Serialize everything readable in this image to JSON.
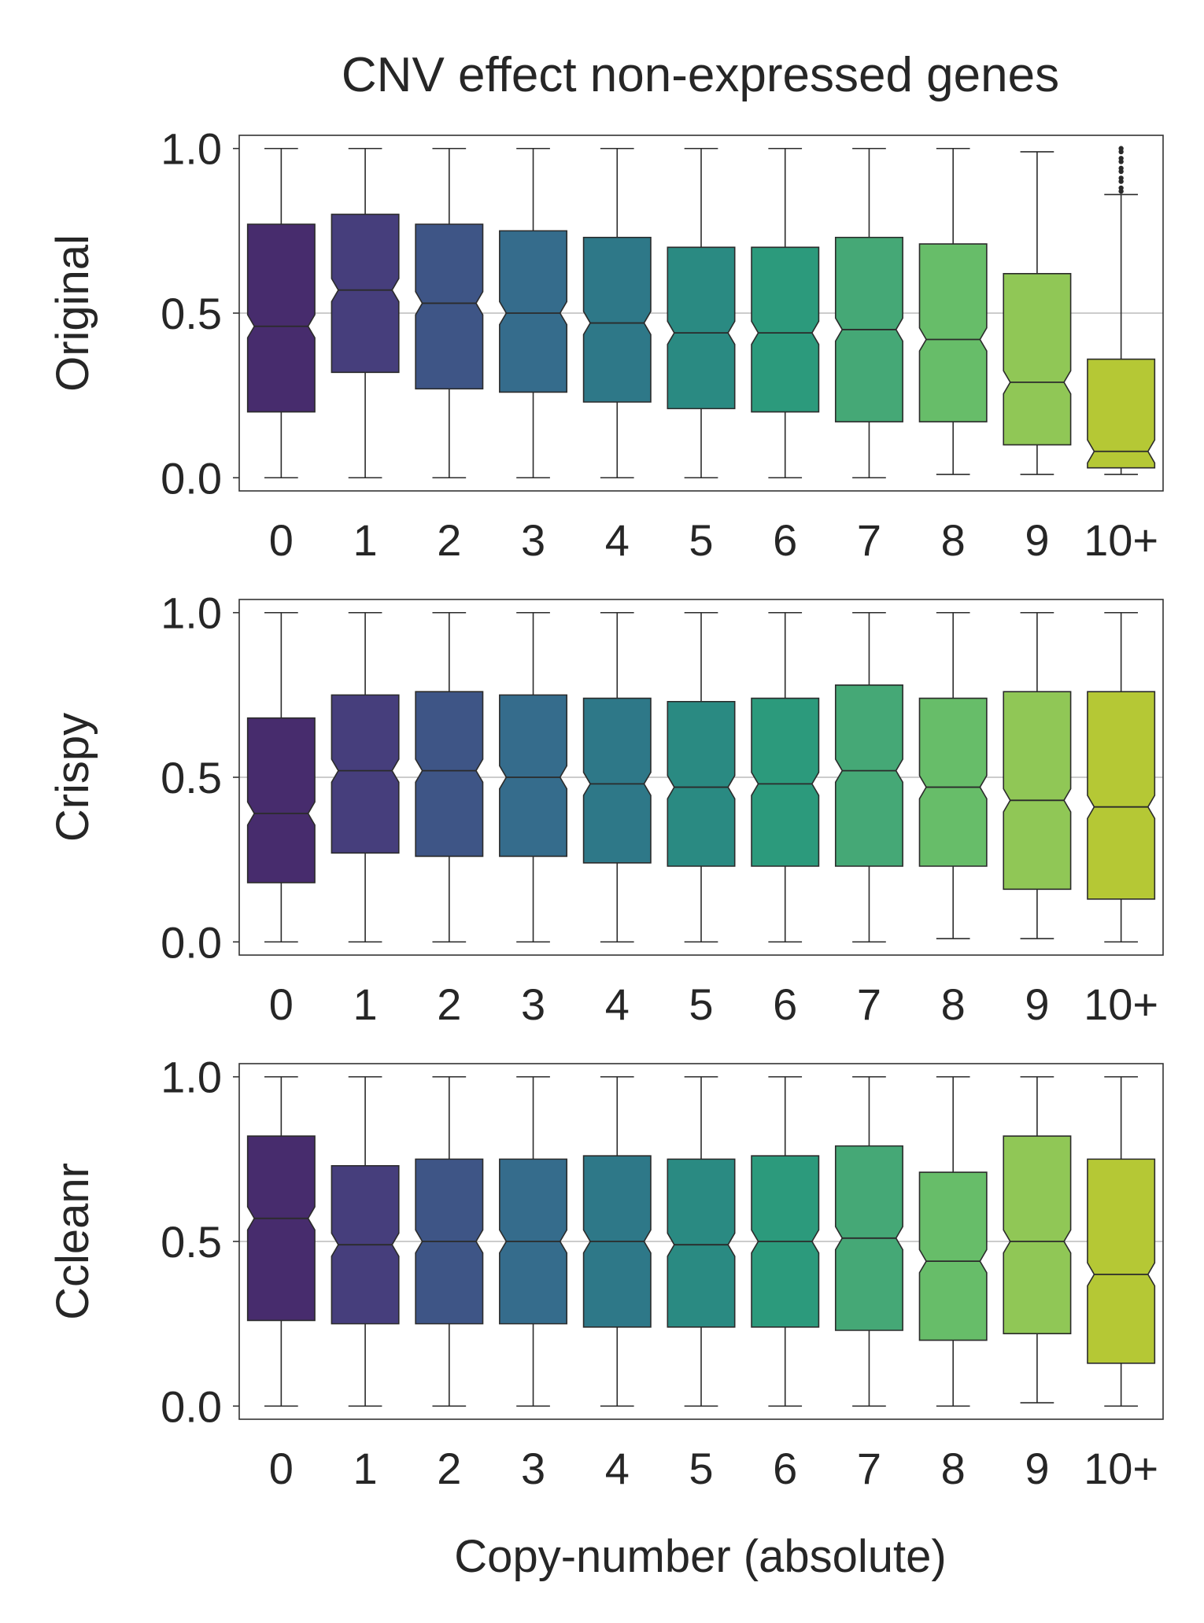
{
  "title": "CNV effect non-expressed genes",
  "xlabel": "Copy-number (absolute)",
  "chart_data": [
    {
      "type": "boxplot",
      "ylabel": "Original",
      "categories": [
        "0",
        "1",
        "2",
        "3",
        "4",
        "5",
        "6",
        "7",
        "8",
        "9",
        "10+"
      ],
      "yticks": [
        "0.0",
        "0.5",
        "1.0"
      ],
      "ylim": [
        -0.04,
        1.04
      ],
      "notched": true,
      "colors": [
        "#472c6d",
        "#463e7c",
        "#3e5586",
        "#356c8c",
        "#2e7888",
        "#2a8a82",
        "#2c9a7c",
        "#45a876",
        "#67bd69",
        "#90c756",
        "#b5c835"
      ],
      "boxes": [
        {
          "whisker_low": 0.0,
          "q1": 0.2,
          "median": 0.46,
          "q3": 0.77,
          "whisker_high": 1.0
        },
        {
          "whisker_low": 0.0,
          "q1": 0.32,
          "median": 0.57,
          "q3": 0.8,
          "whisker_high": 1.0
        },
        {
          "whisker_low": 0.0,
          "q1": 0.27,
          "median": 0.53,
          "q3": 0.77,
          "whisker_high": 1.0
        },
        {
          "whisker_low": 0.0,
          "q1": 0.26,
          "median": 0.5,
          "q3": 0.75,
          "whisker_high": 1.0
        },
        {
          "whisker_low": 0.0,
          "q1": 0.23,
          "median": 0.47,
          "q3": 0.73,
          "whisker_high": 1.0
        },
        {
          "whisker_low": 0.0,
          "q1": 0.21,
          "median": 0.44,
          "q3": 0.7,
          "whisker_high": 1.0
        },
        {
          "whisker_low": 0.0,
          "q1": 0.2,
          "median": 0.44,
          "q3": 0.7,
          "whisker_high": 1.0
        },
        {
          "whisker_low": 0.0,
          "q1": 0.17,
          "median": 0.45,
          "q3": 0.73,
          "whisker_high": 1.0
        },
        {
          "whisker_low": 0.01,
          "q1": 0.17,
          "median": 0.42,
          "q3": 0.71,
          "whisker_high": 1.0
        },
        {
          "whisker_low": 0.01,
          "q1": 0.1,
          "median": 0.29,
          "q3": 0.62,
          "whisker_high": 0.99
        },
        {
          "whisker_low": 0.01,
          "q1": 0.03,
          "median": 0.08,
          "q3": 0.36,
          "whisker_high": 0.86,
          "outliers": [
            0.87,
            0.88,
            0.9,
            0.91,
            0.93,
            0.94,
            0.96,
            0.97,
            0.99,
            1.0
          ]
        }
      ]
    },
    {
      "type": "boxplot",
      "ylabel": "Crispy",
      "categories": [
        "0",
        "1",
        "2",
        "3",
        "4",
        "5",
        "6",
        "7",
        "8",
        "9",
        "10+"
      ],
      "yticks": [
        "0.0",
        "0.5",
        "1.0"
      ],
      "ylim": [
        -0.04,
        1.04
      ],
      "notched": true,
      "colors": [
        "#472c6d",
        "#463e7c",
        "#3e5586",
        "#356c8c",
        "#2e7888",
        "#2a8a82",
        "#2c9a7c",
        "#45a876",
        "#67bd69",
        "#90c756",
        "#b5c835"
      ],
      "boxes": [
        {
          "whisker_low": 0.0,
          "q1": 0.18,
          "median": 0.39,
          "q3": 0.68,
          "whisker_high": 1.0
        },
        {
          "whisker_low": 0.0,
          "q1": 0.27,
          "median": 0.52,
          "q3": 0.75,
          "whisker_high": 1.0
        },
        {
          "whisker_low": 0.0,
          "q1": 0.26,
          "median": 0.52,
          "q3": 0.76,
          "whisker_high": 1.0
        },
        {
          "whisker_low": 0.0,
          "q1": 0.26,
          "median": 0.5,
          "q3": 0.75,
          "whisker_high": 1.0
        },
        {
          "whisker_low": 0.0,
          "q1": 0.24,
          "median": 0.48,
          "q3": 0.74,
          "whisker_high": 1.0
        },
        {
          "whisker_low": 0.0,
          "q1": 0.23,
          "median": 0.47,
          "q3": 0.73,
          "whisker_high": 1.0
        },
        {
          "whisker_low": 0.0,
          "q1": 0.23,
          "median": 0.48,
          "q3": 0.74,
          "whisker_high": 1.0
        },
        {
          "whisker_low": 0.0,
          "q1": 0.23,
          "median": 0.52,
          "q3": 0.78,
          "whisker_high": 1.0
        },
        {
          "whisker_low": 0.01,
          "q1": 0.23,
          "median": 0.47,
          "q3": 0.74,
          "whisker_high": 1.0
        },
        {
          "whisker_low": 0.01,
          "q1": 0.16,
          "median": 0.43,
          "q3": 0.76,
          "whisker_high": 1.0
        },
        {
          "whisker_low": 0.0,
          "q1": 0.13,
          "median": 0.41,
          "q3": 0.76,
          "whisker_high": 1.0
        }
      ]
    },
    {
      "type": "boxplot",
      "ylabel": "Ccleanr",
      "categories": [
        "0",
        "1",
        "2",
        "3",
        "4",
        "5",
        "6",
        "7",
        "8",
        "9",
        "10+"
      ],
      "yticks": [
        "0.0",
        "0.5",
        "1.0"
      ],
      "ylim": [
        -0.04,
        1.04
      ],
      "notched": true,
      "colors": [
        "#472c6d",
        "#463e7c",
        "#3e5586",
        "#356c8c",
        "#2e7888",
        "#2a8a82",
        "#2c9a7c",
        "#45a876",
        "#67bd69",
        "#90c756",
        "#b5c835"
      ],
      "boxes": [
        {
          "whisker_low": 0.0,
          "q1": 0.26,
          "median": 0.57,
          "q3": 0.82,
          "whisker_high": 1.0
        },
        {
          "whisker_low": 0.0,
          "q1": 0.25,
          "median": 0.49,
          "q3": 0.73,
          "whisker_high": 1.0
        },
        {
          "whisker_low": 0.0,
          "q1": 0.25,
          "median": 0.5,
          "q3": 0.75,
          "whisker_high": 1.0
        },
        {
          "whisker_low": 0.0,
          "q1": 0.25,
          "median": 0.5,
          "q3": 0.75,
          "whisker_high": 1.0
        },
        {
          "whisker_low": 0.0,
          "q1": 0.24,
          "median": 0.5,
          "q3": 0.76,
          "whisker_high": 1.0
        },
        {
          "whisker_low": 0.0,
          "q1": 0.24,
          "median": 0.49,
          "q3": 0.75,
          "whisker_high": 1.0
        },
        {
          "whisker_low": 0.0,
          "q1": 0.24,
          "median": 0.5,
          "q3": 0.76,
          "whisker_high": 1.0
        },
        {
          "whisker_low": 0.0,
          "q1": 0.23,
          "median": 0.51,
          "q3": 0.79,
          "whisker_high": 1.0
        },
        {
          "whisker_low": 0.0,
          "q1": 0.2,
          "median": 0.44,
          "q3": 0.71,
          "whisker_high": 1.0
        },
        {
          "whisker_low": 0.01,
          "q1": 0.22,
          "median": 0.5,
          "q3": 0.82,
          "whisker_high": 1.0
        },
        {
          "whisker_low": 0.0,
          "q1": 0.13,
          "median": 0.4,
          "q3": 0.75,
          "whisker_high": 1.0
        }
      ]
    }
  ]
}
